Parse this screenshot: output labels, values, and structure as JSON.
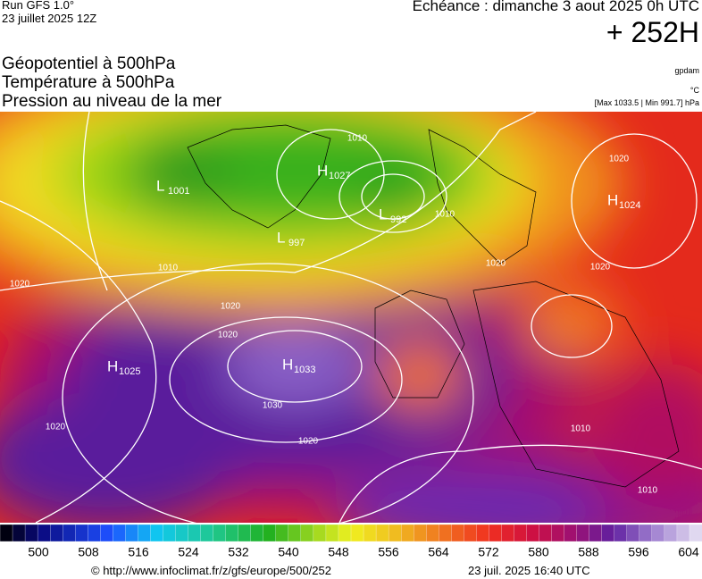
{
  "header": {
    "run": "Run GFS 1.0°",
    "date": "23 juillet 2025 12Z",
    "echeance": "Echéance : dimanche 3 aout 2025 0h UTC",
    "offset": "+ 252H",
    "source": "gpdam",
    "unit": "°C",
    "range": "[Max 1033.5 | Min 991.7] hPa"
  },
  "layers": [
    "Géopotentiel à 500hPa",
    "Température à 500hPa",
    "Pression au niveau de la mer"
  ],
  "map": {
    "centers": [
      {
        "type": "H",
        "value": "1027"
      },
      {
        "type": "L",
        "value": "1001"
      },
      {
        "type": "L",
        "value": "992"
      },
      {
        "type": "L",
        "value": "997"
      },
      {
        "type": "H",
        "value": "1024"
      },
      {
        "type": "H",
        "value": "1025"
      },
      {
        "type": "H",
        "value": "1033"
      }
    ],
    "isobar_labels": [
      "1010",
      "1020",
      "1020",
      "1020",
      "1020",
      "1020",
      "1020",
      "1030",
      "1010",
      "1010",
      "1020",
      "1010",
      "1010",
      "1020"
    ]
  },
  "colorbar": {
    "ticks": [
      "500",
      "508",
      "516",
      "524",
      "532",
      "540",
      "548",
      "556",
      "564",
      "572",
      "580",
      "588",
      "596",
      "604"
    ]
  },
  "footer": {
    "url": "© http://www.infoclimat.fr/z/gfs/europe/500/252",
    "timestamp": "23 juil. 2025 16:40 UTC"
  }
}
